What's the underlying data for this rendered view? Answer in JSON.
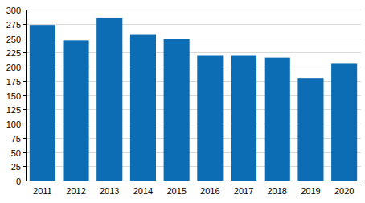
{
  "chart_data": {
    "type": "bar",
    "categories": [
      "2011",
      "2012",
      "2013",
      "2014",
      "2015",
      "2016",
      "2017",
      "2018",
      "2019",
      "2020"
    ],
    "values": [
      273,
      246,
      286,
      257,
      248,
      219,
      219,
      216,
      180,
      205
    ],
    "color": "#0c6cb4",
    "ylim": [
      0,
      300
    ],
    "yticks": [
      0,
      25,
      50,
      75,
      100,
      125,
      150,
      175,
      200,
      225,
      250,
      275,
      300
    ],
    "grid": true
  }
}
